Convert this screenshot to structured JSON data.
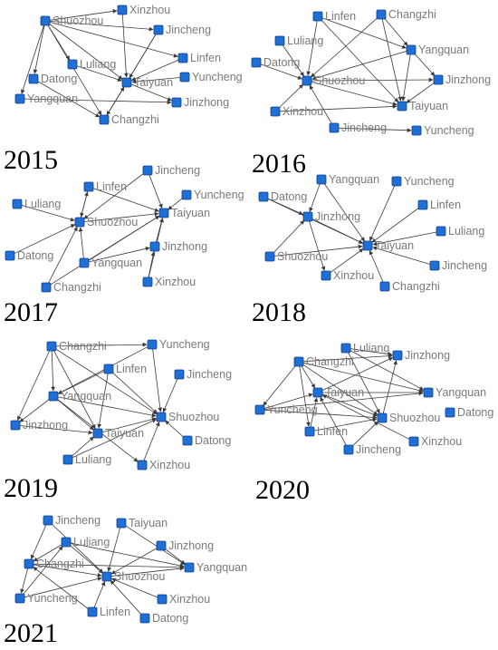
{
  "colors": {
    "node_fill": "#1f6fd6",
    "node_stroke": "#0d3f85",
    "edge": "#3a3a3a",
    "label": "#7a7a7a",
    "year": "#000000"
  },
  "panels": [
    {
      "year": "2015",
      "nodes": [
        {
          "id": "Shuozhou",
          "label": "Shuozhou"
        },
        {
          "id": "Xinzhou",
          "label": "Xinzhou"
        },
        {
          "id": "Jincheng",
          "label": "Jincheng"
        },
        {
          "id": "Linfen",
          "label": "Linfen"
        },
        {
          "id": "Luliang",
          "label": "Luliang"
        },
        {
          "id": "Datong",
          "label": "Datong"
        },
        {
          "id": "Yuncheng",
          "label": "Yuncheng"
        },
        {
          "id": "Taiyuan",
          "label": "Taiyuan"
        },
        {
          "id": "Yangquan",
          "label": "Yangquan"
        },
        {
          "id": "Jinzhong",
          "label": "Jinzhong"
        },
        {
          "id": "Changzhi",
          "label": "Changzhi"
        }
      ],
      "edges": [
        [
          "Shuozhou",
          "Taiyuan"
        ],
        [
          "Shuozhou",
          "Xinzhou"
        ],
        [
          "Shuozhou",
          "Jincheng"
        ],
        [
          "Shuozhou",
          "Linfen"
        ],
        [
          "Shuozhou",
          "Luliang"
        ],
        [
          "Shuozhou",
          "Datong"
        ],
        [
          "Shuozhou",
          "Changzhi"
        ],
        [
          "Shuozhou",
          "Yangquan"
        ],
        [
          "Xinzhou",
          "Taiyuan"
        ],
        [
          "Jincheng",
          "Taiyuan"
        ],
        [
          "Linfen",
          "Taiyuan"
        ],
        [
          "Luliang",
          "Taiyuan"
        ],
        [
          "Yuncheng",
          "Taiyuan"
        ],
        [
          "Taiyuan",
          "Jinzhong"
        ],
        [
          "Yangquan",
          "Jinzhong"
        ],
        [
          "Changzhi",
          "Taiyuan"
        ],
        [
          "Datong",
          "Changzhi"
        ],
        [
          "Jincheng",
          "Changzhi"
        ]
      ]
    },
    {
      "year": "2016",
      "nodes": [
        {
          "id": "Linfen",
          "label": "Linfen"
        },
        {
          "id": "Changzhi",
          "label": "Changzhi"
        },
        {
          "id": "Luliang",
          "label": "Luliang"
        },
        {
          "id": "Yangquan",
          "label": "Yangquan"
        },
        {
          "id": "Datong",
          "label": "Datong"
        },
        {
          "id": "Jinzhong",
          "label": "Jinzhong"
        },
        {
          "id": "Shuozhou",
          "label": "Shuozhou"
        },
        {
          "id": "Xinzhou",
          "label": "Xinzhou"
        },
        {
          "id": "Taiyuan",
          "label": "Taiyuan"
        },
        {
          "id": "Jincheng",
          "label": "Jincheng"
        },
        {
          "id": "Yuncheng",
          "label": "Yuncheng"
        }
      ],
      "edges": [
        [
          "Linfen",
          "Shuozhou"
        ],
        [
          "Linfen",
          "Taiyuan"
        ],
        [
          "Linfen",
          "Yangquan"
        ],
        [
          "Changzhi",
          "Shuozhou"
        ],
        [
          "Changzhi",
          "Taiyuan"
        ],
        [
          "Changzhi",
          "Yangquan"
        ],
        [
          "Luliang",
          "Shuozhou"
        ],
        [
          "Datong",
          "Shuozhou"
        ],
        [
          "Yangquan",
          "Shuozhou"
        ],
        [
          "Yangquan",
          "Taiyuan"
        ],
        [
          "Yangquan",
          "Jinzhong"
        ],
        [
          "Shuozhou",
          "Taiyuan"
        ],
        [
          "Xinzhou",
          "Shuozhou"
        ],
        [
          "Xinzhou",
          "Taiyuan"
        ],
        [
          "Jincheng",
          "Shuozhou"
        ],
        [
          "Jincheng",
          "Yuncheng"
        ],
        [
          "Jinzhong",
          "Taiyuan"
        ],
        [
          "Shuozhou",
          "Jinzhong"
        ]
      ]
    },
    {
      "year": "2017",
      "nodes": [
        {
          "id": "Jincheng",
          "label": "Jincheng"
        },
        {
          "id": "Linfen",
          "label": "Linfen"
        },
        {
          "id": "Yuncheng",
          "label": "Yuncheng"
        },
        {
          "id": "Luliang",
          "label": "Luliang"
        },
        {
          "id": "Shuozhou",
          "label": "Shuozhou"
        },
        {
          "id": "Taiyuan",
          "label": "Taiyuan"
        },
        {
          "id": "Jinzhong",
          "label": "Jinzhong"
        },
        {
          "id": "Datong",
          "label": "Datong"
        },
        {
          "id": "Yangquan",
          "label": "Yangquan"
        },
        {
          "id": "Changzhi",
          "label": "Changzhi"
        },
        {
          "id": "Xinzhou",
          "label": "Xinzhou"
        }
      ],
      "edges": [
        [
          "Jincheng",
          "Taiyuan"
        ],
        [
          "Jincheng",
          "Shuozhou"
        ],
        [
          "Linfen",
          "Shuozhou"
        ],
        [
          "Linfen",
          "Taiyuan"
        ],
        [
          "Yuncheng",
          "Taiyuan"
        ],
        [
          "Luliang",
          "Shuozhou"
        ],
        [
          "Shuozhou",
          "Taiyuan"
        ],
        [
          "Jinzhong",
          "Taiyuan"
        ],
        [
          "Datong",
          "Shuozhou"
        ],
        [
          "Yangquan",
          "Shuozhou"
        ],
        [
          "Yangquan",
          "Taiyuan"
        ],
        [
          "Yangquan",
          "Jinzhong"
        ],
        [
          "Changzhi",
          "Shuozhou"
        ],
        [
          "Changzhi",
          "Taiyuan"
        ],
        [
          "Xinzhou",
          "Taiyuan"
        ],
        [
          "Xinzhou",
          "Jinzhong"
        ],
        [
          "Shuozhou",
          "Linfen"
        ]
      ]
    },
    {
      "year": "2018",
      "nodes": [
        {
          "id": "Yangquan",
          "label": "Yangquan"
        },
        {
          "id": "Yuncheng",
          "label": "Yuncheng"
        },
        {
          "id": "Datong",
          "label": "Datong"
        },
        {
          "id": "Linfen",
          "label": "Linfen"
        },
        {
          "id": "Jinzhong",
          "label": "Jinzhong"
        },
        {
          "id": "Luliang",
          "label": "Luliang"
        },
        {
          "id": "Taiyuan",
          "label": "Taiyuan"
        },
        {
          "id": "Shuozhou",
          "label": "Shuozhou"
        },
        {
          "id": "Jincheng",
          "label": "Jincheng"
        },
        {
          "id": "Xinzhou",
          "label": "Xinzhou"
        },
        {
          "id": "Changzhi",
          "label": "Changzhi"
        }
      ],
      "edges": [
        [
          "Yangquan",
          "Jinzhong"
        ],
        [
          "Yangquan",
          "Taiyuan"
        ],
        [
          "Datong",
          "Jinzhong"
        ],
        [
          "Datong",
          "Taiyuan"
        ],
        [
          "Jinzhong",
          "Taiyuan"
        ],
        [
          "Jinzhong",
          "Xinzhou"
        ],
        [
          "Yuncheng",
          "Taiyuan"
        ],
        [
          "Linfen",
          "Taiyuan"
        ],
        [
          "Luliang",
          "Taiyuan"
        ],
        [
          "Shuozhou",
          "Taiyuan"
        ],
        [
          "Shuozhou",
          "Jinzhong"
        ],
        [
          "Jincheng",
          "Taiyuan"
        ],
        [
          "Xinzhou",
          "Taiyuan"
        ],
        [
          "Changzhi",
          "Taiyuan"
        ]
      ]
    },
    {
      "year": "2019",
      "nodes": [
        {
          "id": "Changzhi",
          "label": "Changzhi"
        },
        {
          "id": "Yuncheng",
          "label": "Yuncheng"
        },
        {
          "id": "Linfen",
          "label": "Linfen"
        },
        {
          "id": "Jincheng",
          "label": "Jincheng"
        },
        {
          "id": "Yangquan",
          "label": "Yangquan"
        },
        {
          "id": "Shuozhou",
          "label": "Shuozhou"
        },
        {
          "id": "Jinzhong",
          "label": "Jinzhong"
        },
        {
          "id": "Taiyuan",
          "label": "Taiyuan"
        },
        {
          "id": "Datong",
          "label": "Datong"
        },
        {
          "id": "Luliang",
          "label": "Luliang"
        },
        {
          "id": "Xinzhou",
          "label": "Xinzhou"
        }
      ],
      "edges": [
        [
          "Changzhi",
          "Yuncheng"
        ],
        [
          "Changzhi",
          "Yangquan"
        ],
        [
          "Changzhi",
          "Shuozhou"
        ],
        [
          "Changzhi",
          "Taiyuan"
        ],
        [
          "Changzhi",
          "Jinzhong"
        ],
        [
          "Yuncheng",
          "Yangquan"
        ],
        [
          "Yuncheng",
          "Shuozhou"
        ],
        [
          "Linfen",
          "Yangquan"
        ],
        [
          "Linfen",
          "Taiyuan"
        ],
        [
          "Linfen",
          "Shuozhou"
        ],
        [
          "Jincheng",
          "Shuozhou"
        ],
        [
          "Yangquan",
          "Taiyuan"
        ],
        [
          "Yangquan",
          "Shuozhou"
        ],
        [
          "Yangquan",
          "Jinzhong"
        ],
        [
          "Yangquan",
          "Xinzhou"
        ],
        [
          "Jinzhong",
          "Taiyuan"
        ],
        [
          "Taiyuan",
          "Shuozhou"
        ],
        [
          "Datong",
          "Shuozhou"
        ],
        [
          "Luliang",
          "Taiyuan"
        ],
        [
          "Luliang",
          "Shuozhou"
        ],
        [
          "Xinzhou",
          "Shuozhou"
        ]
      ]
    },
    {
      "year": "2020",
      "nodes": [
        {
          "id": "Luliang",
          "label": "Luliang"
        },
        {
          "id": "Jinzhong",
          "label": "Jinzhong"
        },
        {
          "id": "Changzhi",
          "label": "Changzhi"
        },
        {
          "id": "Yangquan",
          "label": "Yangquan"
        },
        {
          "id": "Taiyuan",
          "label": "Taiyuan"
        },
        {
          "id": "Yuncheng",
          "label": "Yuncheng"
        },
        {
          "id": "Shuozhou",
          "label": "Shuozhou"
        },
        {
          "id": "Datong",
          "label": "Datong"
        },
        {
          "id": "Linfen",
          "label": "Linfen"
        },
        {
          "id": "Xinzhou",
          "label": "Xinzhou"
        },
        {
          "id": "Jincheng",
          "label": "Jincheng"
        }
      ],
      "edges": [
        [
          "Luliang",
          "Jinzhong"
        ],
        [
          "Luliang",
          "Yangquan"
        ],
        [
          "Luliang",
          "Shuozhou"
        ],
        [
          "Changzhi",
          "Jinzhong"
        ],
        [
          "Changzhi",
          "Yangquan"
        ],
        [
          "Changzhi",
          "Shuozhou"
        ],
        [
          "Changzhi",
          "Taiyuan"
        ],
        [
          "Changzhi",
          "Yuncheng"
        ],
        [
          "Changzhi",
          "Linfen"
        ],
        [
          "Taiyuan",
          "Jinzhong"
        ],
        [
          "Taiyuan",
          "Yangquan"
        ],
        [
          "Taiyuan",
          "Shuozhou"
        ],
        [
          "Yuncheng",
          "Taiyuan"
        ],
        [
          "Yuncheng",
          "Shuozhou"
        ],
        [
          "Yuncheng",
          "Yangquan"
        ],
        [
          "Linfen",
          "Taiyuan"
        ],
        [
          "Linfen",
          "Shuozhou"
        ],
        [
          "Jincheng",
          "Taiyuan"
        ],
        [
          "Jincheng",
          "Shuozhou"
        ],
        [
          "Xinzhou",
          "Taiyuan"
        ],
        [
          "Shuozhou",
          "Jinzhong"
        ]
      ]
    },
    {
      "year": "2021",
      "nodes": [
        {
          "id": "Jincheng",
          "label": "Jincheng"
        },
        {
          "id": "Taiyuan",
          "label": "Taiyuan"
        },
        {
          "id": "Luliang",
          "label": "Luliang"
        },
        {
          "id": "Jinzhong",
          "label": "Jinzhong"
        },
        {
          "id": "Changzhi",
          "label": "Changzhi"
        },
        {
          "id": "Yangquan",
          "label": "Yangquan"
        },
        {
          "id": "Shuozhou",
          "label": "Shuozhou"
        },
        {
          "id": "Yuncheng",
          "label": "Yuncheng"
        },
        {
          "id": "Xinzhou",
          "label": "Xinzhou"
        },
        {
          "id": "Linfen",
          "label": "Linfen"
        },
        {
          "id": "Datong",
          "label": "Datong"
        }
      ],
      "edges": [
        [
          "Jincheng",
          "Changzhi"
        ],
        [
          "Jincheng",
          "Shuozhou"
        ],
        [
          "Taiyuan",
          "Shuozhou"
        ],
        [
          "Taiyuan",
          "Yangquan"
        ],
        [
          "Luliang",
          "Shuozhou"
        ],
        [
          "Luliang",
          "Yangquan"
        ],
        [
          "Luliang",
          "Changzhi"
        ],
        [
          "Jinzhong",
          "Shuozhou"
        ],
        [
          "Changzhi",
          "Shuozhou"
        ],
        [
          "Changzhi",
          "Yangquan"
        ],
        [
          "Changzhi",
          "Yuncheng"
        ],
        [
          "Shuozhou",
          "Yangquan"
        ],
        [
          "Yuncheng",
          "Shuozhou"
        ],
        [
          "Yuncheng",
          "Luliang"
        ],
        [
          "Xinzhou",
          "Shuozhou"
        ],
        [
          "Linfen",
          "Shuozhou"
        ],
        [
          "Linfen",
          "Changzhi"
        ],
        [
          "Datong",
          "Shuozhou"
        ],
        [
          "Jinzhong",
          "Yangquan"
        ]
      ]
    }
  ]
}
